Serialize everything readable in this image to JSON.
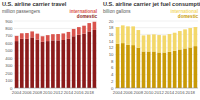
{
  "chart_data": [
    {
      "type": "bar",
      "stacked": true,
      "grid": true,
      "legend": "top-right",
      "title": "U.S. airline carrier travel",
      "subtitle": "million passengers",
      "categories": [
        "2004",
        null,
        "2006",
        null,
        "2008",
        null,
        "2010",
        null,
        "2012",
        null,
        "2014",
        null,
        "2016",
        null,
        "2018",
        null
      ],
      "ylim": [
        0,
        900
      ],
      "yticks": [
        0,
        100,
        200,
        300,
        400,
        500,
        600,
        700,
        800,
        900
      ],
      "series": [
        {
          "name": "domestic",
          "color": "#8b1a1a",
          "values": [
            630,
            660,
            660,
            680,
            650,
            620,
            630,
            640,
            640,
            645,
            660,
            695,
            715,
            730,
            760,
            780
          ]
        },
        {
          "name": "international",
          "color": "#d9544d",
          "values": [
            70,
            75,
            78,
            80,
            80,
            75,
            80,
            83,
            85,
            88,
            93,
            98,
            103,
            107,
            112,
            110
          ]
        }
      ]
    },
    {
      "type": "bar",
      "stacked": true,
      "grid": true,
      "legend": "top-right",
      "title": "U.S. airline carrier jet fuel consumption",
      "subtitle": "billion gallons",
      "categories": [
        "2004",
        null,
        "2006",
        null,
        "2008",
        null,
        "2010",
        null,
        "2012",
        null,
        "2014",
        null,
        "2016",
        null,
        "2018",
        null
      ],
      "ylim": [
        0,
        20
      ],
      "yticks": [
        0,
        2,
        4,
        6,
        8,
        10,
        12,
        14,
        16,
        18,
        20
      ],
      "series": [
        {
          "name": "domestic",
          "color": "#c99a06",
          "values": [
            13.2,
            13.4,
            12.9,
            12.8,
            12.0,
            10.9,
            10.9,
            10.9,
            10.6,
            10.6,
            10.8,
            11.1,
            11.5,
            11.8,
            12.1,
            12.5
          ]
        },
        {
          "name": "international",
          "color": "#f3d86a",
          "values": [
            5.0,
            5.3,
            5.5,
            5.6,
            5.3,
            4.8,
            5.0,
            5.1,
            5.2,
            5.1,
            5.3,
            5.4,
            5.5,
            5.7,
            5.8,
            5.7
          ]
        }
      ]
    }
  ]
}
